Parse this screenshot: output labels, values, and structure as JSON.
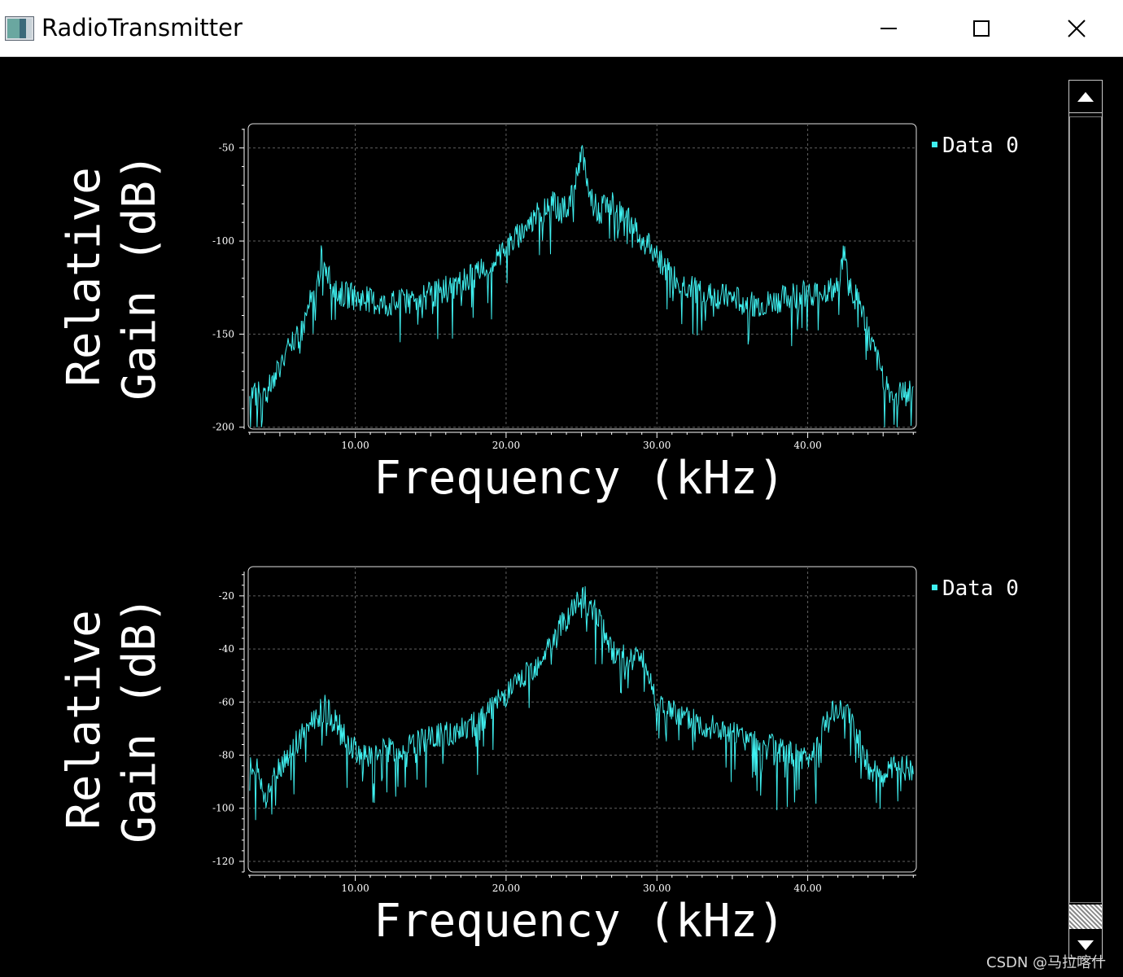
{
  "window": {
    "title": "RadioTransmitter",
    "icon": "app-icon",
    "controls": [
      "minimize-icon",
      "maximize-icon",
      "close-icon"
    ]
  },
  "colors": {
    "background": "#000000",
    "trace": "#3ff0f0",
    "axis": "#ffffff",
    "grid": "#606060",
    "frame": "#e0e0e0"
  },
  "watermark": "CSDN @马拉喀什",
  "chart_data": [
    {
      "type": "line",
      "xlabel": "Frequency (kHz)",
      "ylabel_lines": [
        "Relative",
        "Gain (dB)"
      ],
      "xlim": [
        2.9,
        47.2
      ],
      "ylim": [
        -201,
        -37
      ],
      "xticks": [
        10,
        20,
        30,
        40
      ],
      "xtick_labels": [
        "10.00",
        "20.00",
        "30.00",
        "40.00"
      ],
      "yticks": [
        -50,
        -100,
        -150,
        -200
      ],
      "ytick_labels": [
        "-50",
        "-100",
        "-150",
        "-200"
      ],
      "grid": true,
      "legend": {
        "position": "right",
        "entries": [
          "Data 0"
        ]
      },
      "series": [
        {
          "name": "Data 0",
          "x": [
            3,
            3.5,
            4,
            4.5,
            5,
            5.5,
            6,
            6.5,
            7,
            7.4,
            7.8,
            8.5,
            9,
            10,
            11,
            12,
            13,
            14,
            15,
            16,
            17,
            18,
            19,
            20,
            21,
            22,
            23,
            23.8,
            24.4,
            24.8,
            25.0,
            25.2,
            25.6,
            26.2,
            27,
            28,
            29,
            30,
            31,
            32,
            33,
            34,
            35,
            36,
            37,
            38,
            39,
            40,
            41,
            42,
            42.4,
            42.8,
            43.5,
            44,
            44.5,
            45,
            45.5,
            46,
            46.5,
            47
          ],
          "y": [
            -182,
            -182,
            -182,
            -176,
            -166,
            -160,
            -154,
            -147,
            -133,
            -128,
            -106,
            -128,
            -128,
            -130,
            -132,
            -134,
            -133,
            -131,
            -129,
            -126,
            -122,
            -118,
            -112,
            -104,
            -95,
            -86,
            -80,
            -84,
            -76,
            -60,
            -50,
            -60,
            -78,
            -84,
            -80,
            -88,
            -98,
            -108,
            -118,
            -124,
            -128,
            -130,
            -131,
            -133,
            -134,
            -132,
            -130,
            -128,
            -127,
            -126,
            -105,
            -126,
            -134,
            -150,
            -162,
            -172,
            -182,
            -182,
            -182,
            -182
          ]
        }
      ]
    },
    {
      "type": "line",
      "xlabel": "Frequency (kHz)",
      "ylabel_lines": [
        "Relative",
        "Gain (dB)"
      ],
      "xlim": [
        2.9,
        47.2
      ],
      "ylim": [
        -124,
        -9
      ],
      "xticks": [
        10,
        20,
        30,
        40
      ],
      "xtick_labels": [
        "10.00",
        "20.00",
        "30.00",
        "40.00"
      ],
      "yticks": [
        -20,
        -40,
        -60,
        -80,
        -100,
        -120
      ],
      "ytick_labels": [
        "-20",
        "-40",
        "-60",
        "-80",
        "-100",
        "-120"
      ],
      "grid": true,
      "legend": {
        "position": "right",
        "entries": [
          "Data 0"
        ]
      },
      "series": [
        {
          "name": "Data 0",
          "x": [
            3,
            3.5,
            4,
            4.5,
            5,
            5.5,
            6,
            7,
            8,
            9,
            10,
            11,
            12,
            13,
            14,
            15,
            16,
            17,
            18,
            19,
            20,
            21,
            22,
            23,
            24,
            25,
            26,
            27,
            28,
            29,
            30,
            31,
            32,
            33,
            34,
            35,
            36,
            37,
            38,
            39,
            40,
            41,
            42,
            43,
            44,
            45,
            46,
            47
          ],
          "y": [
            -82,
            -86,
            -96,
            -90,
            -84,
            -80,
            -76,
            -68,
            -62,
            -70,
            -78,
            -81,
            -78,
            -77,
            -76,
            -74,
            -72,
            -70,
            -68,
            -63,
            -57,
            -52,
            -46,
            -38,
            -28,
            -20,
            -26,
            -40,
            -44,
            -42,
            -60,
            -64,
            -66,
            -68,
            -70,
            -72,
            -74,
            -76,
            -78,
            -80,
            -82,
            -70,
            -62,
            -68,
            -84,
            -88,
            -84,
            -85
          ]
        }
      ]
    }
  ]
}
